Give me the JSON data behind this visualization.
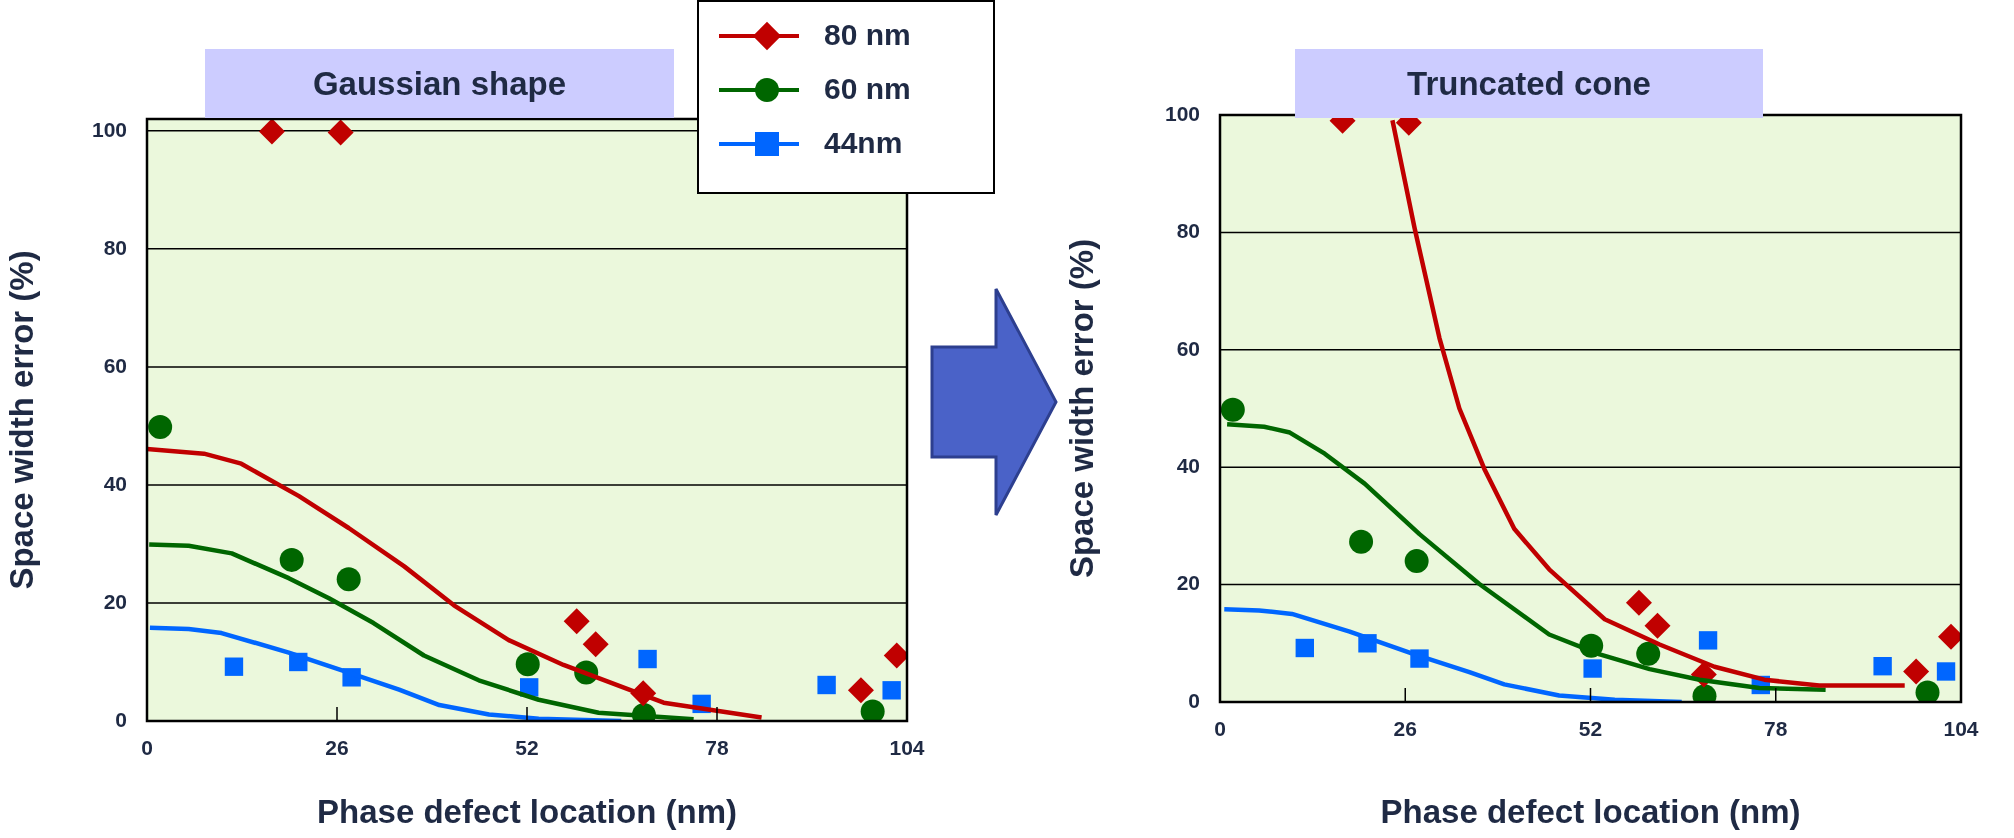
{
  "chart_data": [
    {
      "type": "scatter",
      "title": "Gaussian shape",
      "xlabel": "Phase defect location (nm)",
      "ylabel": "Space width error (%)",
      "xlim": [
        0,
        104
      ],
      "ylim": [
        0,
        102
      ],
      "xticks": [
        0,
        26,
        52,
        78,
        104
      ],
      "yticks": [
        0,
        20,
        40,
        60,
        80,
        100
      ],
      "grid": "y",
      "legend": "top right",
      "series": [
        {
          "type": "line",
          "marker": "none",
          "color": "#c00000",
          "x": [
            0,
            7.8,
            12.9,
            20.8,
            27.6,
            35.2,
            42.0,
            49.5,
            57.0,
            70.7,
            84.1
          ],
          "values": [
            46.1,
            45.3,
            43.6,
            38.1,
            32.7,
            26.2,
            19.6,
            13.7,
            9.5,
            3.1,
            0.6
          ]
        },
        {
          "type": "line",
          "marker": "none",
          "color": "#006600",
          "x": [
            0.3,
            5.7,
            11.6,
            19.4,
            24.9,
            31.0,
            37.9,
            45.4,
            53.6,
            61.8,
            74.8
          ],
          "values": [
            29.9,
            29.7,
            28.4,
            24.2,
            20.8,
            16.6,
            11.1,
            6.9,
            3.6,
            1.4,
            0.3
          ]
        },
        {
          "type": "line",
          "marker": "none",
          "color": "#0066ff",
          "x": [
            0.4,
            5.7,
            10.2,
            19.4,
            27.6,
            34.5,
            40.0,
            46.8,
            53.6,
            64.9
          ],
          "values": [
            15.8,
            15.6,
            14.9,
            11.6,
            8.2,
            5.3,
            2.7,
            1.1,
            0.4,
            0.0
          ]
        },
        {
          "name": "80 nm",
          "type": "scatter",
          "marker": "diamond",
          "color": "#c00000",
          "x": [
            17.1,
            26.5,
            58.8,
            61.4,
            67.9,
            97.7,
            102.6
          ],
          "values": [
            99.9,
            99.7,
            16.9,
            13.0,
            4.7,
            5.2,
            11.1
          ]
        },
        {
          "name": "60 nm",
          "type": "scatter",
          "marker": "circle",
          "color": "#006600",
          "x": [
            1.8,
            19.8,
            27.6,
            52.1,
            60.1,
            68.0,
            99.3
          ],
          "values": [
            49.8,
            27.3,
            24.0,
            9.6,
            8.2,
            1.0,
            1.6
          ]
        },
        {
          "name": "44nm",
          "type": "scatter",
          "marker": "square",
          "color": "#0066ff",
          "x": [
            11.9,
            20.7,
            28.0,
            52.3,
            68.5,
            75.9,
            93.0,
            101.9
          ],
          "values": [
            9.2,
            10.0,
            7.4,
            5.7,
            10.5,
            2.9,
            6.1,
            5.2
          ]
        }
      ]
    },
    {
      "type": "scatter",
      "title": "Truncated cone",
      "xlabel": "Phase defect location (nm)",
      "ylabel": "Space width error (%)",
      "xlim": [
        0,
        104
      ],
      "ylim": [
        0,
        100
      ],
      "xticks": [
        0,
        26,
        52,
        78,
        104
      ],
      "yticks": [
        0,
        20,
        40,
        60,
        80,
        100
      ],
      "grid": "y",
      "series": [
        {
          "type": "line",
          "marker": "none",
          "color": "#c00000",
          "x": [
            24.2,
            27.3,
            30.8,
            33.6,
            37.1,
            41.3,
            46.2,
            54.0,
            61.7,
            69.4,
            76.4,
            84.1,
            96.1
          ],
          "values": [
            99.1,
            80.8,
            62.0,
            50.0,
            39.7,
            29.5,
            22.6,
            14.1,
            9.8,
            6.0,
            3.8,
            2.8,
            2.8
          ]
        },
        {
          "type": "line",
          "marker": "none",
          "color": "#006600",
          "x": [
            1.0,
            6.2,
            9.8,
            14.7,
            20.3,
            28.0,
            36.4,
            46.2,
            53.3,
            60.3,
            67.3,
            75.7,
            85.0
          ],
          "values": [
            47.3,
            46.9,
            45.9,
            42.3,
            37.2,
            28.6,
            20.1,
            11.5,
            8.1,
            5.6,
            3.8,
            2.4,
            2.1
          ]
        },
        {
          "type": "line",
          "marker": "none",
          "color": "#0066ff",
          "x": [
            0.6,
            5.5,
            10.1,
            18.2,
            27.3,
            35.0,
            39.9,
            47.6,
            55.4,
            64.8
          ],
          "values": [
            15.8,
            15.6,
            15.0,
            12.0,
            8.1,
            5.1,
            3.0,
            1.1,
            0.4,
            0.0
          ]
        },
        {
          "type": "scatter",
          "marker": "diamond",
          "color": "#c00000",
          "x": [
            17.2,
            26.5,
            58.8,
            61.4,
            67.9,
            97.7,
            102.6
          ],
          "values": [
            99.0,
            98.7,
            16.9,
            13.0,
            4.7,
            5.2,
            11.1
          ]
        },
        {
          "type": "scatter",
          "marker": "circle",
          "color": "#006600",
          "x": [
            1.8,
            19.8,
            27.6,
            52.1,
            60.1,
            68.0,
            99.3
          ],
          "values": [
            49.8,
            27.3,
            24.0,
            9.6,
            8.2,
            1.0,
            1.6
          ]
        },
        {
          "type": "scatter",
          "marker": "square",
          "color": "#0066ff",
          "x": [
            11.9,
            20.7,
            28.0,
            52.3,
            68.5,
            75.9,
            93.0,
            101.9
          ],
          "values": [
            9.2,
            10.0,
            7.4,
            5.7,
            10.5,
            2.9,
            6.1,
            5.2
          ]
        }
      ]
    }
  ]
}
